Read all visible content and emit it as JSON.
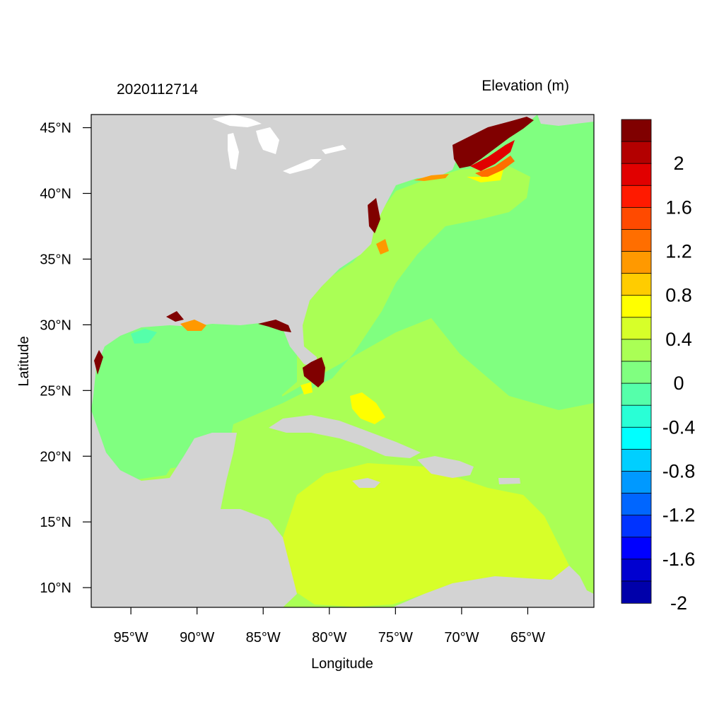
{
  "title_left": "2020112714",
  "title_right": "Elevation (m)",
  "x_axis": {
    "label": "Longitude",
    "range": [
      -98,
      -60
    ],
    "ticks": [
      {
        "value": -95,
        "label": "95°W"
      },
      {
        "value": -90,
        "label": "90°W"
      },
      {
        "value": -85,
        "label": "85°W"
      },
      {
        "value": -80,
        "label": "80°W"
      },
      {
        "value": -75,
        "label": "75°W"
      },
      {
        "value": -70,
        "label": "70°W"
      },
      {
        "value": -65,
        "label": "65°W"
      }
    ]
  },
  "y_axis": {
    "label": "Latitude",
    "range": [
      8.5,
      46
    ],
    "ticks": [
      {
        "value": 45,
        "label": "45°N"
      },
      {
        "value": 40,
        "label": "40°N"
      },
      {
        "value": 35,
        "label": "35°N"
      },
      {
        "value": 30,
        "label": "30°N"
      },
      {
        "value": 25,
        "label": "25°N"
      },
      {
        "value": 20,
        "label": "20°N"
      },
      {
        "value": 15,
        "label": "15°N"
      },
      {
        "value": 10,
        "label": "10°N"
      }
    ]
  },
  "colorbar": {
    "levels_top_to_bottom": [
      {
        "color": "#800000"
      },
      {
        "color": "#b30000",
        "label": "2"
      },
      {
        "color": "#e10000"
      },
      {
        "color": "#ff1a00",
        "label": "1.6"
      },
      {
        "color": "#ff4a00"
      },
      {
        "color": "#ff6e00",
        "label": "1.2"
      },
      {
        "color": "#ff9900"
      },
      {
        "color": "#ffcc00",
        "label": "0.8"
      },
      {
        "color": "#ffff00"
      },
      {
        "color": "#d7ff29",
        "label": "0.4"
      },
      {
        "color": "#aaff55"
      },
      {
        "color": "#80ff80",
        "label": "0"
      },
      {
        "color": "#55ffaa"
      },
      {
        "color": "#29ffd6",
        "label": "-0.4"
      },
      {
        "color": "#00ffff"
      },
      {
        "color": "#00cfff",
        "label": "-0.8"
      },
      {
        "color": "#0099ff"
      },
      {
        "color": "#0066ff",
        "label": "-1.2"
      },
      {
        "color": "#0033ff"
      },
      {
        "color": "#0000ff",
        "label": "-1.6"
      },
      {
        "color": "#0000d0"
      },
      {
        "color": "#0000aa",
        "label": "-2"
      }
    ]
  },
  "colors": {
    "land": "#d3d3d3",
    "zero_band": "#80ff80",
    "low_positive": "#aaff55",
    "mid_positive": "#d7ff29",
    "lake": "#ffffff"
  }
}
